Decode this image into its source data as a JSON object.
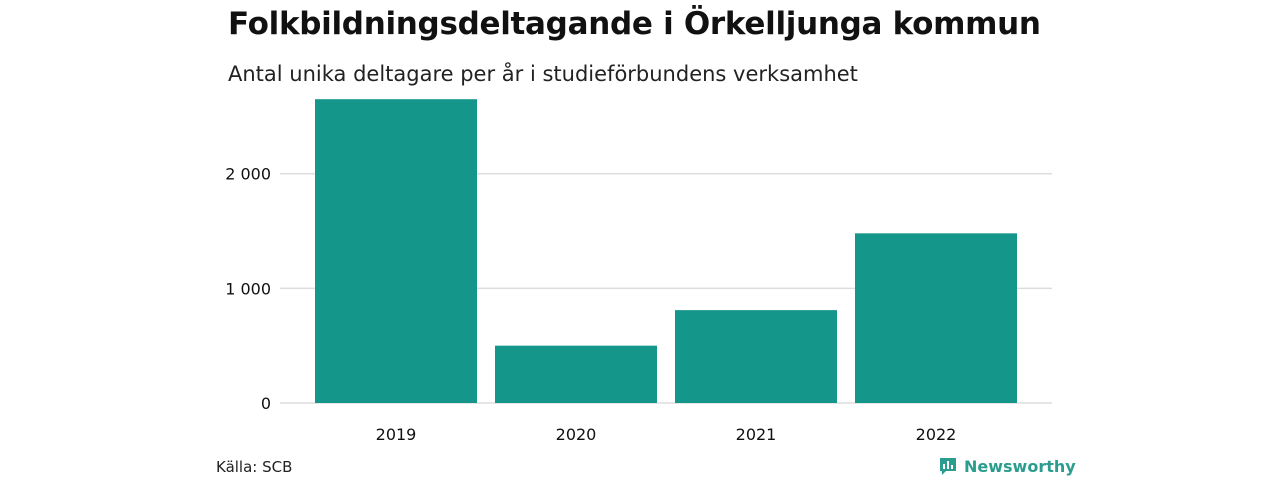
{
  "header": {
    "title": "Folkbildningsdeltagande i Örkelljunga kommun",
    "subtitle": "Antal unika deltagare per år i studieförbundens verksamhet"
  },
  "footer": {
    "source": "Källa: SCB",
    "brand": "Newsworthy",
    "brand_icon": "bar-chart-logo-icon"
  },
  "colors": {
    "bar": "#14968a",
    "grid": "#dddddd",
    "brand": "#2a9d8f"
  },
  "chart_data": {
    "type": "bar",
    "categories": [
      "2019",
      "2020",
      "2021",
      "2022"
    ],
    "values": [
      2650,
      500,
      810,
      1480
    ],
    "ylim": [
      0,
      2800
    ],
    "yticks": [
      0,
      1000,
      2000
    ],
    "ytick_labels": [
      "0",
      "1 000",
      "2 000"
    ],
    "grid": true,
    "title": "Folkbildningsdeltagande i Örkelljunga kommun",
    "subtitle": "Antal unika deltagare per år i studieförbundens verksamhet",
    "xlabel": "",
    "ylabel": ""
  }
}
